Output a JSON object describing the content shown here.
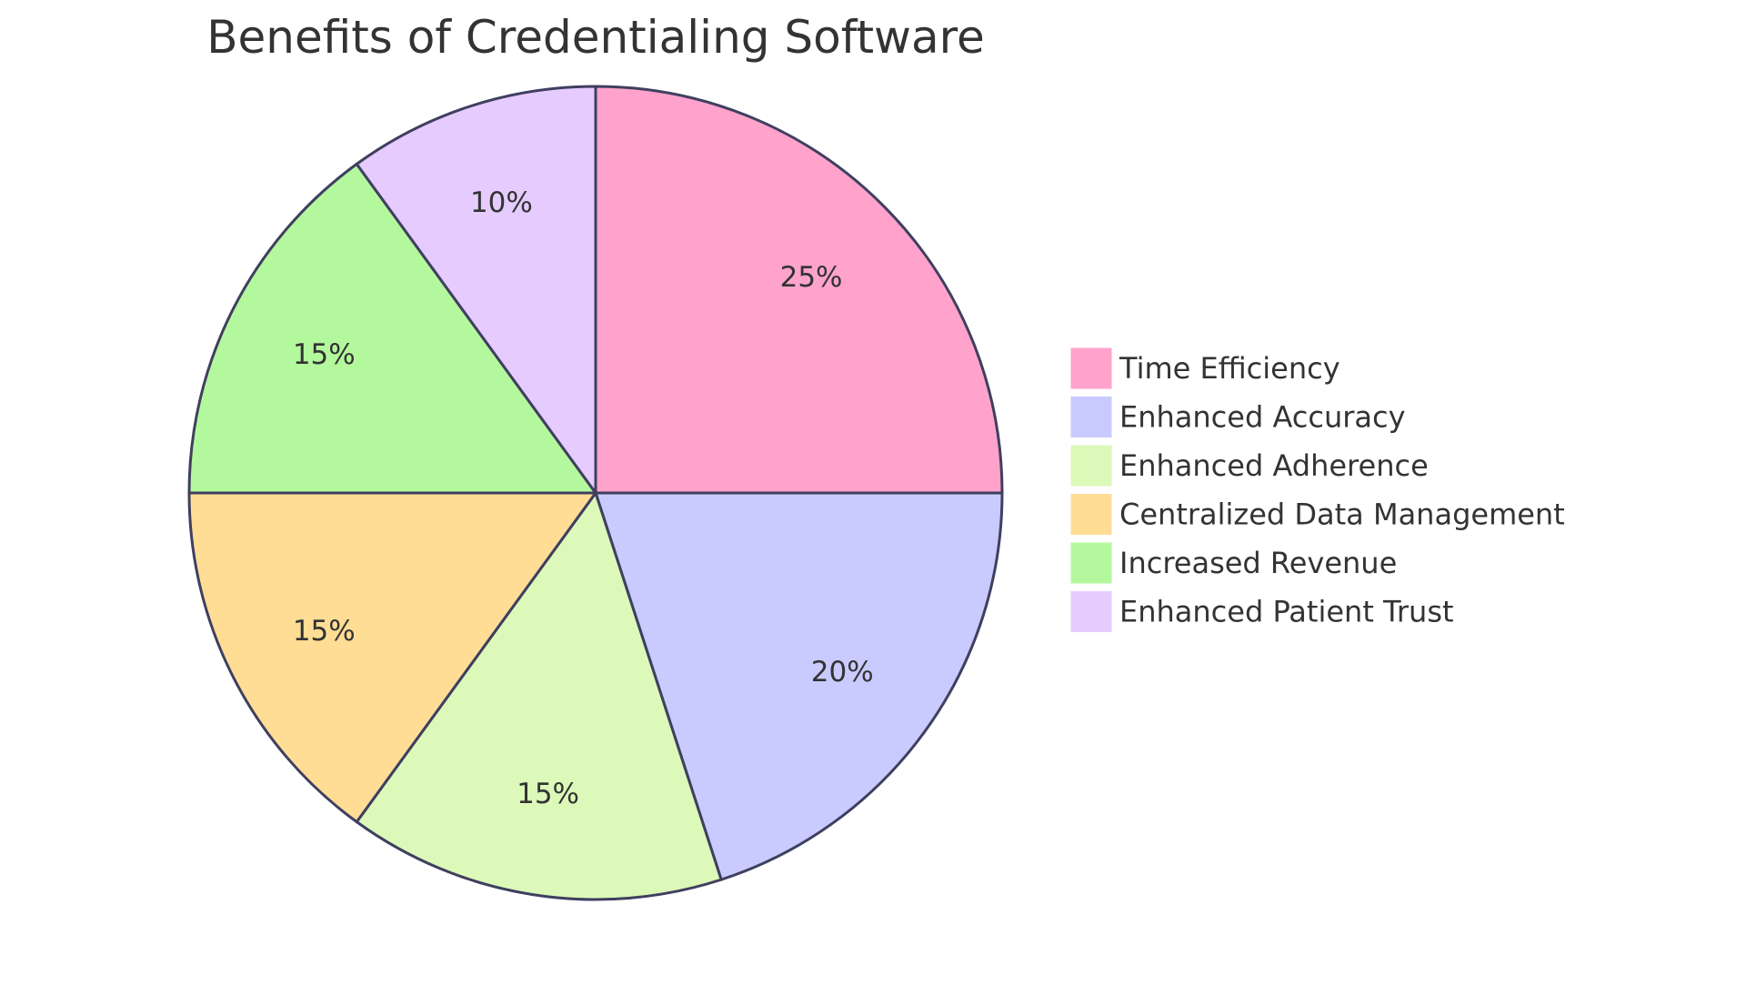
{
  "chart_data": {
    "type": "pie",
    "title": "Benefits of Credentialing Software",
    "categories": [
      "Time Efficiency",
      "Enhanced Accuracy",
      "Enhanced Adherence",
      "Centralized Data Management",
      "Increased Revenue",
      "Enhanced Patient Trust"
    ],
    "values": [
      25,
      20,
      15,
      15,
      15,
      10
    ],
    "labels": [
      "25%",
      "20%",
      "15%",
      "15%",
      "15%",
      "10%"
    ],
    "colors": [
      "#ffa3cc",
      "#c9cbff",
      "#dcf9b9",
      "#ffdd95",
      "#b4f89e",
      "#e6ccfe"
    ],
    "legend_position": "right"
  }
}
